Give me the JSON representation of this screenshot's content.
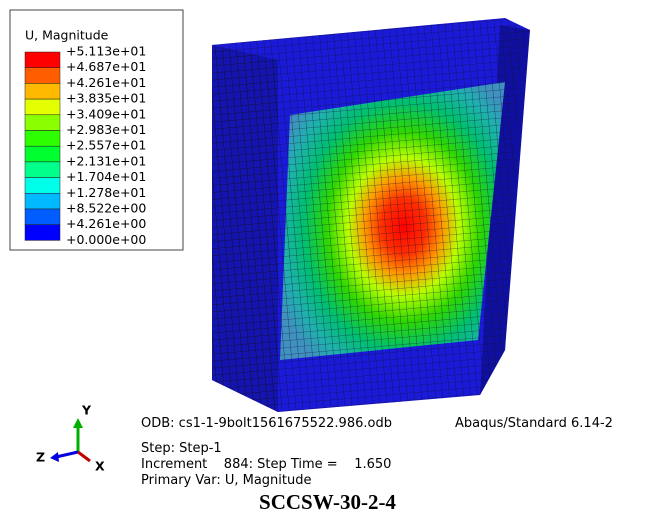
{
  "legend": {
    "title": "U, Magnitude",
    "labels": [
      "+5.113e+01",
      "+4.687e+01",
      "+4.261e+01",
      "+3.835e+01",
      "+3.409e+01",
      "+2.983e+01",
      "+2.557e+01",
      "+2.131e+01",
      "+1.704e+01",
      "+1.278e+01",
      "+8.522e+00",
      "+4.261e+00",
      "+0.000e+00"
    ],
    "colors": [
      "#ff0000",
      "#ff5d00",
      "#ffb900",
      "#e3ff00",
      "#8aff00",
      "#2eff00",
      "#00ff2e",
      "#00ff8b",
      "#00ffe8",
      "#00b9ff",
      "#005dff",
      "#0000ff"
    ]
  },
  "triad": {
    "y": "Y",
    "z": "Z",
    "x": "X"
  },
  "info": {
    "odb": "ODB: cs1-1-9bolt1561675522.986.odb",
    "solver": "Abaqus/Standard 6.14-2",
    "step": "Step: Step-1",
    "increment": "Increment    884: Step Time =    1.650",
    "primary_var": "Primary Var: U, Magnitude"
  },
  "caption": "SCCSW-30-2-4"
}
